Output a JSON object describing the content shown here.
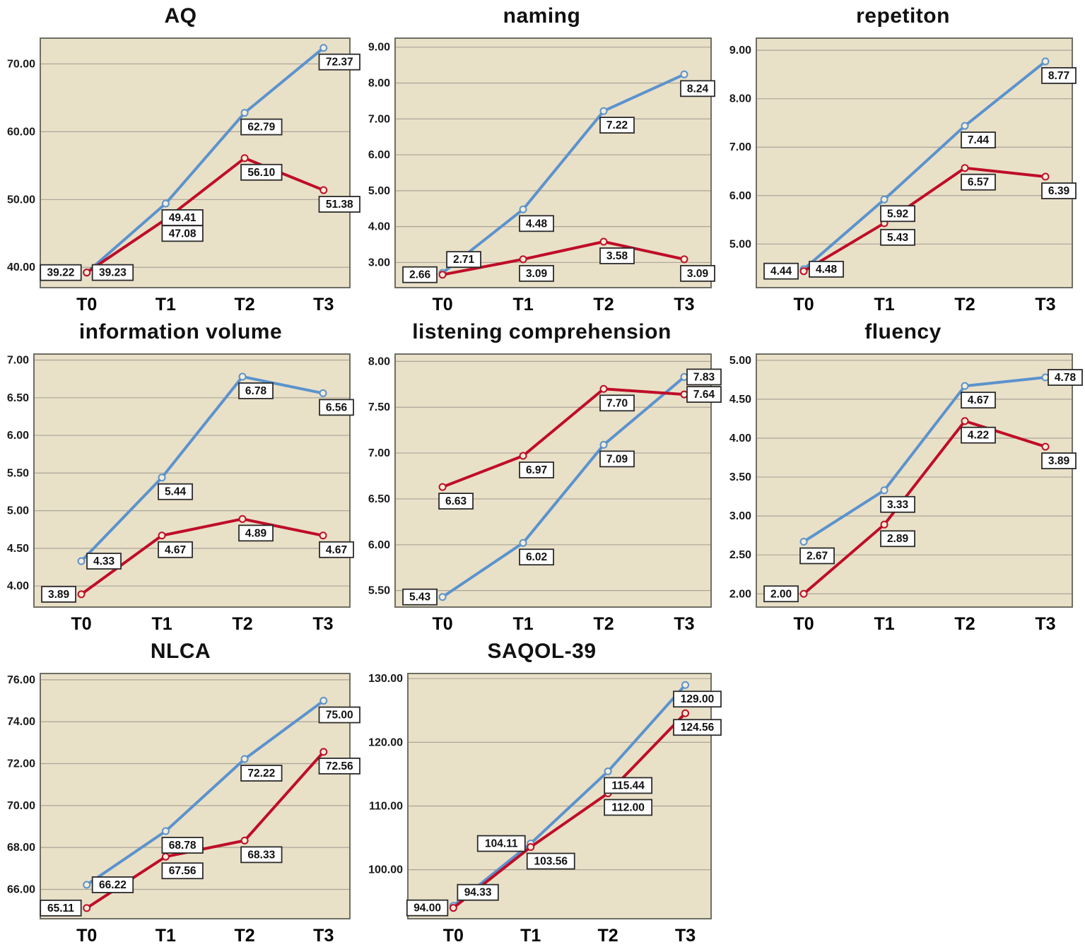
{
  "colors": {
    "series_blue": "#5b93cd",
    "series_red": "#bf0d28",
    "plot_bg": "#e9e0c8",
    "grid_line": "#aaa596",
    "frame": "#6e6e64",
    "label_box_bg": "#ffffff",
    "label_box_border": "#2b2b2b",
    "tick_text": "#1a1a1a",
    "axis_text": "#000000"
  },
  "chart_data": [
    {
      "id": "aq",
      "type": "line",
      "title": "AQ",
      "categories": [
        "T0",
        "T1",
        "T2",
        "T3"
      ],
      "yticks": [
        40,
        50,
        60,
        70
      ],
      "ylim": [
        37.0,
        73.8
      ],
      "grid": true,
      "legend": "none",
      "series": [
        {
          "name": "group-blue",
          "color": "#5b93cd",
          "values": [
            39.22,
            49.41,
            62.79,
            72.37
          ],
          "label_pos": [
            "left",
            "below",
            "below",
            "below"
          ]
        },
        {
          "name": "group-red",
          "color": "#bf0d28",
          "values": [
            39.23,
            47.08,
            56.1,
            51.38
          ],
          "label_pos": [
            "right",
            "below",
            "below",
            "below"
          ]
        }
      ]
    },
    {
      "id": "naming",
      "type": "line",
      "title": "naming",
      "categories": [
        "T0",
        "T1",
        "T2",
        "T3"
      ],
      "yticks": [
        3,
        4,
        5,
        6,
        7,
        8,
        9
      ],
      "ylim": [
        2.3,
        9.25
      ],
      "grid": true,
      "legend": "none",
      "series": [
        {
          "name": "group-blue",
          "color": "#5b93cd",
          "values": [
            2.71,
            4.48,
            7.22,
            8.24
          ],
          "label_pos": [
            "above-right",
            "below",
            "below",
            "below"
          ]
        },
        {
          "name": "group-red",
          "color": "#bf0d28",
          "values": [
            2.66,
            3.09,
            3.58,
            3.09
          ],
          "label_pos": [
            "left",
            "below",
            "below",
            "below"
          ]
        }
      ]
    },
    {
      "id": "repetiton",
      "type": "line",
      "title": "repetiton",
      "categories": [
        "T0",
        "T1",
        "T2",
        "T3"
      ],
      "yticks": [
        5,
        6,
        7,
        8,
        9
      ],
      "ylim": [
        4.1,
        9.25
      ],
      "grid": true,
      "legend": "none",
      "series": [
        {
          "name": "group-blue",
          "color": "#5b93cd",
          "values": [
            4.48,
            5.92,
            7.44,
            8.77
          ],
          "label_pos": [
            "right",
            "below",
            "below",
            "below"
          ]
        },
        {
          "name": "group-red",
          "color": "#bf0d28",
          "values": [
            4.44,
            5.43,
            6.57,
            6.39
          ],
          "label_pos": [
            "left",
            "below",
            "below",
            "below"
          ]
        }
      ]
    },
    {
      "id": "information-volume",
      "type": "line",
      "title": "information volume",
      "categories": [
        "T0",
        "T1",
        "T2",
        "T3"
      ],
      "yticks": [
        4,
        4.5,
        5,
        5.5,
        6,
        6.5,
        7
      ],
      "ylim": [
        3.72,
        7.08
      ],
      "grid": true,
      "legend": "none",
      "series": [
        {
          "name": "group-blue",
          "color": "#5b93cd",
          "values": [
            4.33,
            5.44,
            6.78,
            6.56
          ],
          "label_pos": [
            "right",
            "below",
            "below",
            "below"
          ]
        },
        {
          "name": "group-red",
          "color": "#bf0d28",
          "values": [
            3.89,
            4.67,
            4.89,
            4.67
          ],
          "label_pos": [
            "left",
            "below",
            "below",
            "below"
          ]
        }
      ]
    },
    {
      "id": "listening-comprehension",
      "type": "line",
      "title": "listening comprehension",
      "categories": [
        "T0",
        "T1",
        "T2",
        "T3"
      ],
      "yticks": [
        5.5,
        6,
        6.5,
        7,
        7.5,
        8
      ],
      "ylim": [
        5.32,
        8.08
      ],
      "grid": true,
      "legend": "none",
      "series": [
        {
          "name": "group-blue",
          "color": "#5b93cd",
          "values": [
            5.43,
            6.02,
            7.09,
            7.83
          ],
          "label_pos": [
            "left",
            "below",
            "below",
            "right"
          ]
        },
        {
          "name": "group-red",
          "color": "#bf0d28",
          "values": [
            6.63,
            6.97,
            7.7,
            7.64
          ],
          "label_pos": [
            "below",
            "below",
            "below",
            "right"
          ]
        }
      ]
    },
    {
      "id": "fluency",
      "type": "line",
      "title": "fluency",
      "categories": [
        "T0",
        "T1",
        "T2",
        "T3"
      ],
      "yticks": [
        2,
        2.5,
        3,
        3.5,
        4,
        4.5,
        5
      ],
      "ylim": [
        1.83,
        5.08
      ],
      "grid": true,
      "legend": "none",
      "series": [
        {
          "name": "group-blue",
          "color": "#5b93cd",
          "values": [
            2.67,
            3.33,
            4.67,
            4.78
          ],
          "label_pos": [
            "below",
            "below",
            "below",
            "right"
          ]
        },
        {
          "name": "group-red",
          "color": "#bf0d28",
          "values": [
            2.0,
            2.89,
            4.22,
            3.89
          ],
          "label_pos": [
            "left",
            "below",
            "below",
            "below"
          ]
        }
      ]
    },
    {
      "id": "nlca",
      "type": "line",
      "title": "NLCA",
      "categories": [
        "T0",
        "T1",
        "T2",
        "T3"
      ],
      "yticks": [
        66,
        68,
        70,
        72,
        74,
        76
      ],
      "ylim": [
        64.6,
        76.3
      ],
      "grid": true,
      "legend": "none",
      "series": [
        {
          "name": "group-blue",
          "color": "#5b93cd",
          "values": [
            66.22,
            68.78,
            72.22,
            75.0
          ],
          "label_pos": [
            "right",
            "below",
            "below",
            "below"
          ]
        },
        {
          "name": "group-red",
          "color": "#bf0d28",
          "values": [
            65.11,
            67.56,
            68.33,
            72.56
          ],
          "label_pos": [
            "left",
            "below",
            "below",
            "below"
          ]
        }
      ]
    },
    {
      "id": "saqol-39",
      "type": "line",
      "title": "SAQOL-39",
      "categories": [
        "T0",
        "T1",
        "T2",
        "T3"
      ],
      "yticks": [
        100,
        110,
        120,
        130
      ],
      "ylim": [
        92.3,
        130.8
      ],
      "grid": true,
      "legend": "none",
      "series": [
        {
          "name": "group-blue",
          "color": "#5b93cd",
          "values": [
            94.33,
            104.11,
            115.44,
            129.0
          ],
          "label_pos": [
            "above-right",
            "left",
            "below",
            "right-below"
          ]
        },
        {
          "name": "group-red",
          "color": "#bf0d28",
          "values": [
            94.0,
            103.56,
            112.0,
            124.56
          ],
          "label_pos": [
            "left",
            "below",
            "below",
            "right-below"
          ]
        }
      ]
    }
  ]
}
